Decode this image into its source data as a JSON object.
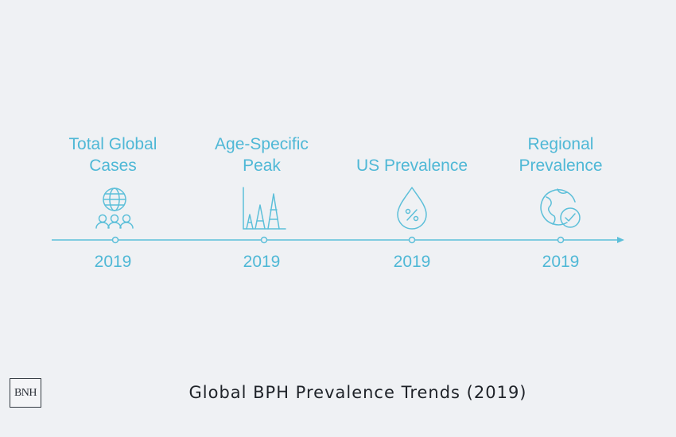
{
  "diagram": {
    "milestones": [
      {
        "label": "Total Global\nCases",
        "year": "2019",
        "icon": "globe-people-icon"
      },
      {
        "label": "Age-Specific\nPeak",
        "year": "2019",
        "icon": "rising-peaks-icon"
      },
      {
        "label": "US Prevalence",
        "year": "2019",
        "icon": "percent-drop-icon"
      },
      {
        "label": "Regional\nPrevalence",
        "year": "2019",
        "icon": "globe-check-icon"
      }
    ],
    "accent_color": "#4fb8d6"
  },
  "footer": {
    "logo_text": "BNH",
    "title": "Global BPH Prevalence Trends (2019)"
  }
}
